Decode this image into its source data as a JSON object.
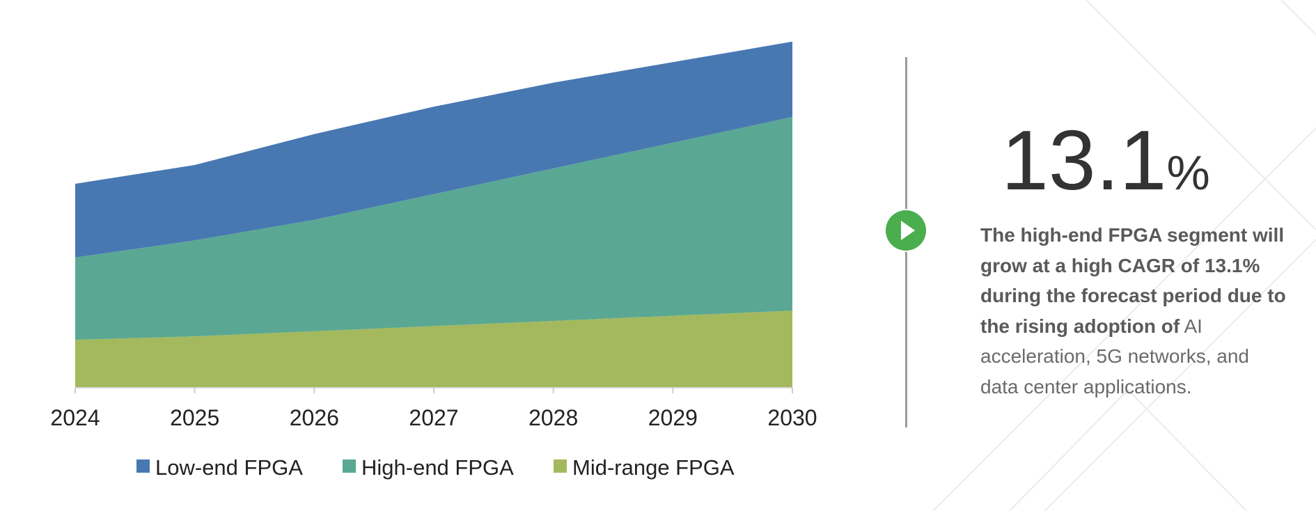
{
  "chart_data": {
    "type": "area",
    "stacked": true,
    "x": [
      "2024",
      "2025",
      "2026",
      "2027",
      "2028",
      "2029",
      "2030"
    ],
    "series": [
      {
        "name": "Mid-range FPGA",
        "color": "#a4b95d",
        "values": [
          14,
          15,
          16.5,
          18,
          19.5,
          21,
          22.5
        ]
      },
      {
        "name": "High-end FPGA",
        "color": "#5aa893",
        "values": [
          24,
          28,
          32.5,
          38.5,
          44.5,
          50.5,
          56.5
        ]
      },
      {
        "name": "Low-end FPGA",
        "color": "#4878b2",
        "values": [
          21.5,
          22,
          25,
          25.5,
          25,
          23.5,
          22
        ]
      }
    ],
    "legend_order": [
      "Low-end FPGA",
      "High-end FPGA",
      "Mid-range FPGA"
    ],
    "legend_position": "bottom-center",
    "ylim": [
      0,
      105
    ],
    "grid": false,
    "title": "",
    "xlabel": "",
    "ylabel": ""
  },
  "stat": {
    "value": "13.1",
    "unit": "%"
  },
  "description": {
    "bold": "The high-end FPGA segment will grow at a high CAGR of 13.1% during the forecast period due to the rising adoption of",
    "normal": " AI acceleration, 5G networks, and data center applications."
  },
  "icons": {
    "play": "play-icon"
  },
  "colors": {
    "accent_green": "#4aae4e",
    "text_dark": "#333333"
  }
}
